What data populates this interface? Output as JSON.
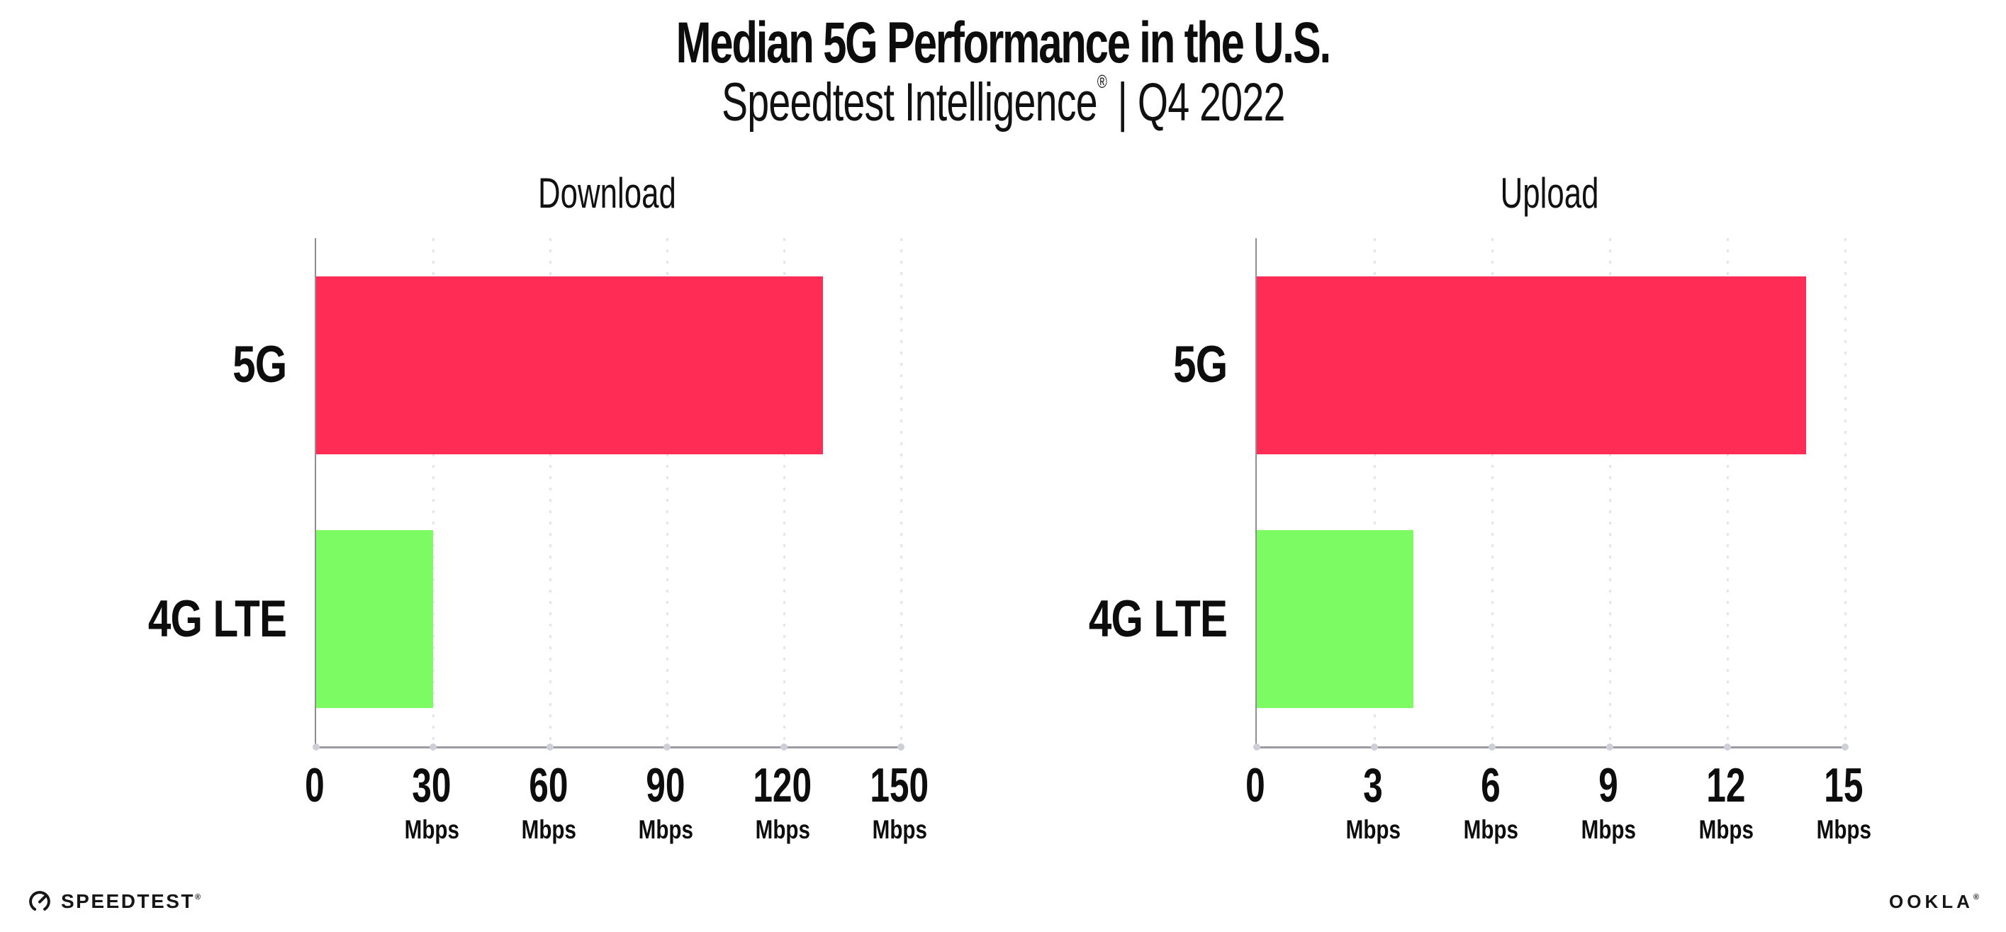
{
  "title": "Median 5G Performance in the U.S.",
  "subtitle": {
    "brand": "Speedtest Intelligence",
    "reg": "®",
    "period": "| Q4 2022"
  },
  "chart_data": [
    {
      "type": "bar",
      "orientation": "horizontal",
      "title": "Download",
      "categories": [
        "5G",
        "4G LTE"
      ],
      "values": [
        130,
        30
      ],
      "unit": "Mbps",
      "xlim": [
        0,
        150
      ],
      "xticks": [
        0,
        30,
        60,
        90,
        120,
        150
      ],
      "bar_colors": [
        "#FF2D55",
        "#7DFB63"
      ],
      "grid": "vertical-dotted",
      "legend_position": "none"
    },
    {
      "type": "bar",
      "orientation": "horizontal",
      "title": "Upload",
      "categories": [
        "5G",
        "4G LTE"
      ],
      "values": [
        14,
        4
      ],
      "unit": "Mbps",
      "xlim": [
        0,
        15
      ],
      "xticks": [
        0,
        3,
        6,
        9,
        12,
        15
      ],
      "bar_colors": [
        "#FF2D55",
        "#7DFB63"
      ],
      "grid": "vertical-dotted",
      "legend_position": "none"
    }
  ],
  "footer": {
    "speedtest_label": "SPEEDTEST",
    "speedtest_reg": "®",
    "ookla_label": "OOKLA",
    "ookla_reg": "®"
  },
  "colors": {
    "bar_5g": "#FF2D55",
    "bar_4g_lte": "#7DFB63",
    "axis_line": "#8e8e94",
    "gridline": "#e3e4ed",
    "tick_dot": "#cdd0d9",
    "text": "#0d0d0d",
    "background": "#ffffff"
  }
}
